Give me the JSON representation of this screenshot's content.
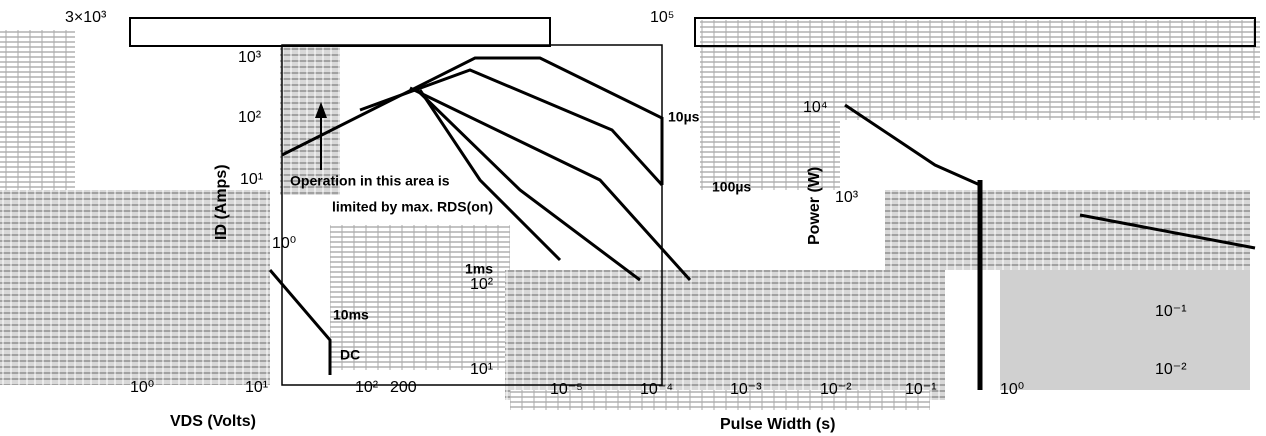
{
  "left_chart": {
    "y_ticks": [
      "3×10³",
      "10³",
      "10²",
      "10¹",
      "10⁰"
    ],
    "y_label": "ID (Amps)",
    "x_ticks": [
      "10⁰",
      "10¹",
      "10²",
      "200"
    ],
    "x_label": "VDS (Volts)",
    "curve_labels": [
      "10µs",
      "100µs",
      "1ms",
      "10ms",
      "DC"
    ],
    "annotation": [
      "Operation in this area is",
      "limited by max. RDS(on)"
    ]
  },
  "middle_chart": {
    "y_ticks": [
      "10²",
      "10¹"
    ],
    "x_ticks": [
      "10⁻⁵",
      "10⁻⁴",
      "10⁻³",
      "10⁻²",
      "10⁻¹",
      "10⁰"
    ],
    "x_label": "Pulse Width (s)"
  },
  "right_chart": {
    "y_ticks": [
      "10⁵",
      "10⁴",
      "10³",
      "10⁻¹",
      "10⁻²"
    ],
    "y_label": "Power (W)"
  }
}
